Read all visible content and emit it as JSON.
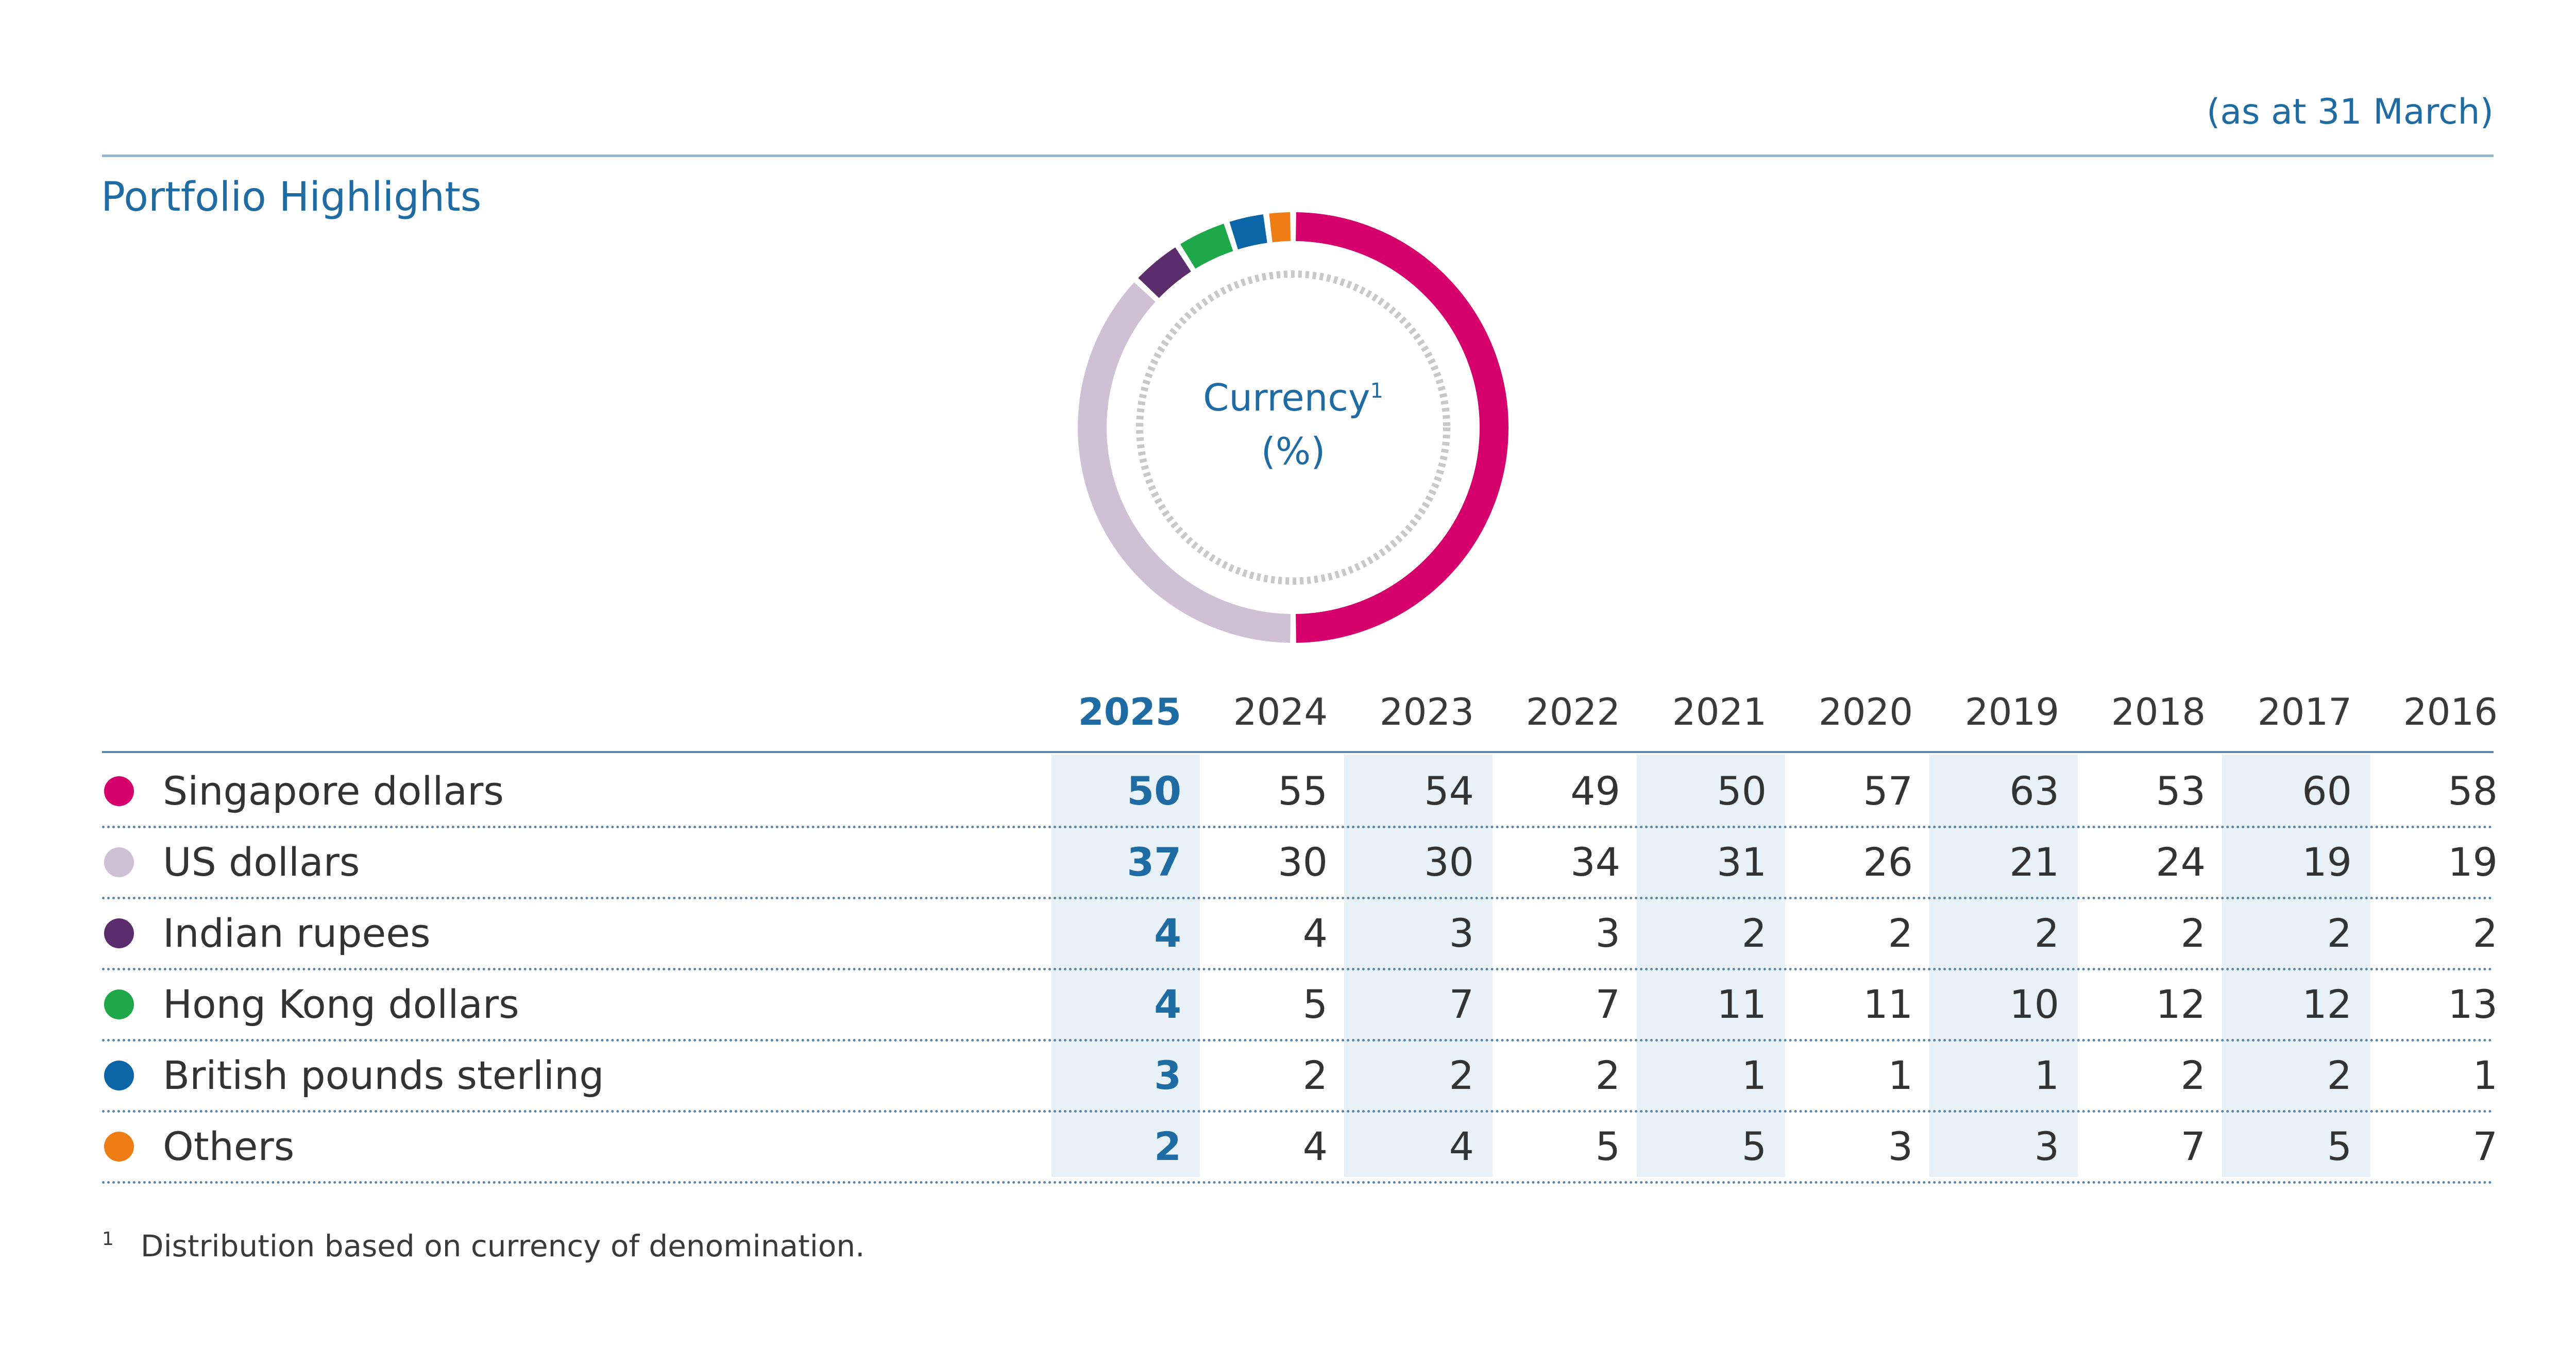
{
  "header": {
    "as_at": "(as at 31 March)",
    "title": "Portfolio Highlights"
  },
  "donut": {
    "label": "Currency",
    "footnote_marker": "1",
    "unit": "(%)"
  },
  "colors": {
    "Singapore dollars": "#d6006c",
    "US dollars": "#cfc0d6",
    "Indian rupees": "#5b2d6d",
    "Hong Kong dollars": "#1ea84a",
    "British pounds sterling": "#0b66a8",
    "Others": "#ef7d16",
    "accent": "#1f6ba3"
  },
  "chart_data": {
    "type": "table",
    "donut_year": "2025",
    "years": [
      "2025",
      "2024",
      "2023",
      "2022",
      "2021",
      "2020",
      "2019",
      "2018",
      "2017",
      "2016"
    ],
    "series": [
      {
        "name": "Singapore dollars",
        "values": [
          "50",
          "55",
          "54",
          "49",
          "50",
          "57",
          "63",
          "53",
          "60",
          "58"
        ]
      },
      {
        "name": "US dollars",
        "values": [
          "37",
          "30",
          "30",
          "34",
          "31",
          "26",
          "21",
          "24",
          "19",
          "19"
        ]
      },
      {
        "name": "Indian rupees",
        "values": [
          "4",
          "4",
          "3",
          "3",
          "2",
          "2",
          "2",
          "2",
          "2",
          "2"
        ]
      },
      {
        "name": "Hong Kong dollars",
        "values": [
          "4",
          "5",
          "7",
          "7",
          "11",
          "11",
          "10",
          "12",
          "12",
          "13"
        ]
      },
      {
        "name": "British pounds sterling",
        "values": [
          "3",
          "2",
          "2",
          "2",
          "1",
          "1",
          "1",
          "2",
          "2",
          "1"
        ]
      },
      {
        "name": "Others",
        "values": [
          "2",
          "4",
          "4",
          "5",
          "5",
          "3",
          "3",
          "7",
          "5",
          "7"
        ]
      }
    ]
  },
  "footnote": {
    "marker": "1",
    "text": "Distribution based on currency of denomination."
  }
}
